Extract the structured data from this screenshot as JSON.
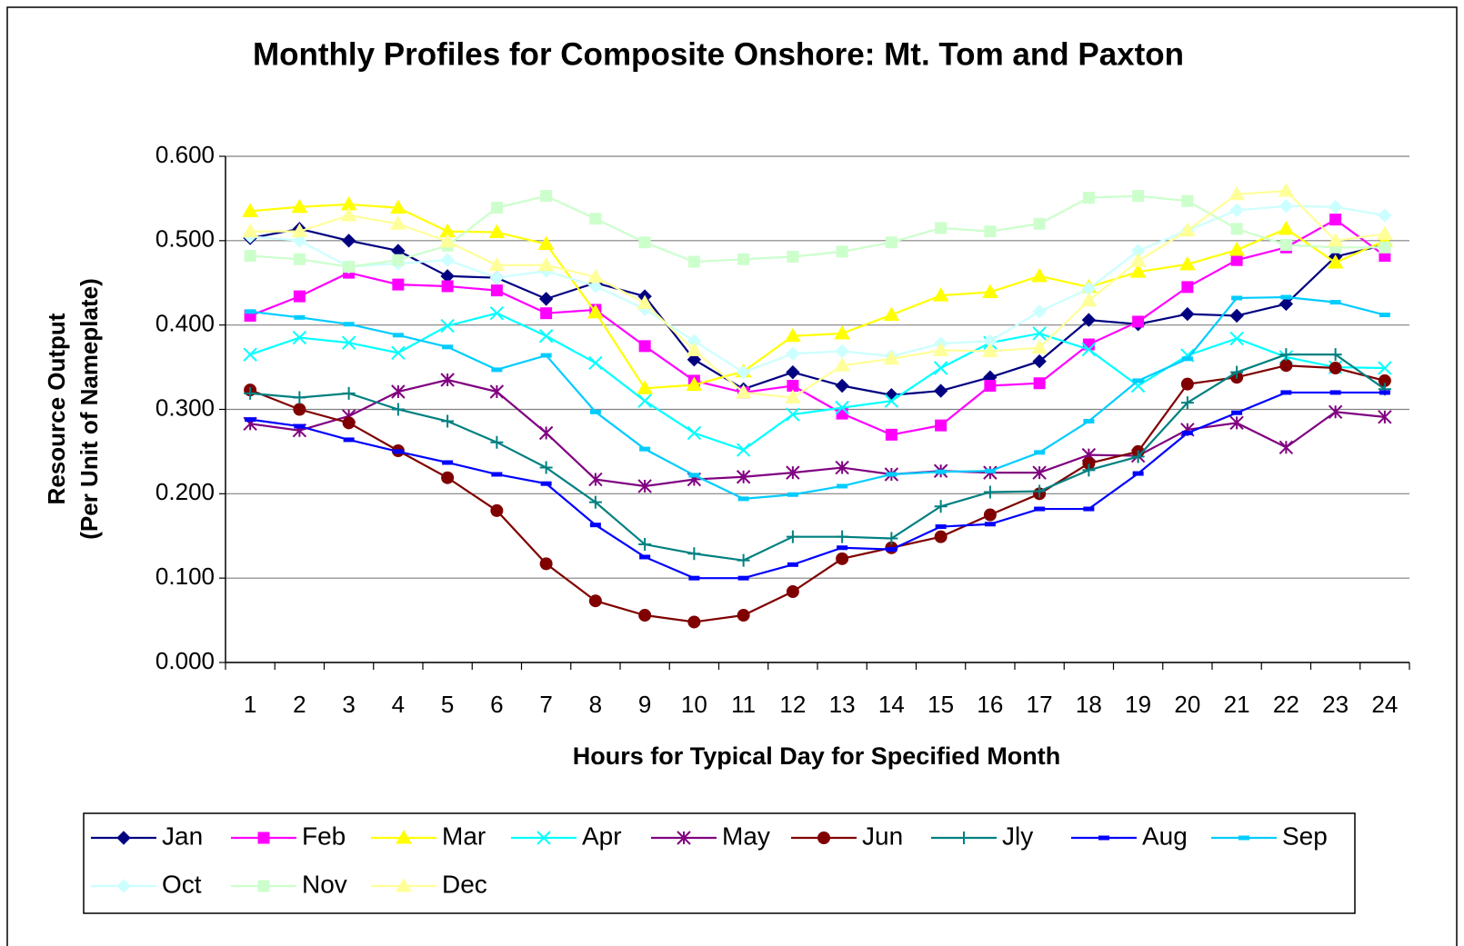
{
  "chart_data": {
    "type": "line",
    "title": "Monthly Profiles for Composite Onshore: Mt. Tom and Paxton",
    "xlabel": "Hours for Typical Day for Specified Month",
    "ylabel": [
      "Resource Output",
      "(Per Unit of Nameplate)"
    ],
    "categories": [
      "1",
      "2",
      "3",
      "4",
      "5",
      "6",
      "7",
      "8",
      "9",
      "10",
      "11",
      "12",
      "13",
      "14",
      "15",
      "16",
      "17",
      "18",
      "19",
      "20",
      "21",
      "22",
      "23",
      "24"
    ],
    "ylim": [
      0,
      0.6
    ],
    "yticks": [
      {
        "value": 0,
        "label": "0.000"
      },
      {
        "value": 0.1,
        "label": "0.100"
      },
      {
        "value": 0.2,
        "label": "0.200"
      },
      {
        "value": 0.3,
        "label": "0.300"
      },
      {
        "value": 0.4,
        "label": "0.400"
      },
      {
        "value": 0.5,
        "label": "0.500"
      },
      {
        "value": 0.6,
        "label": "0.600"
      }
    ],
    "grid": true,
    "legend": "bottom",
    "series": [
      {
        "name": "Jan",
        "color": "#000080",
        "marker": "diamond",
        "values": [
          0.503,
          0.514,
          0.5,
          0.488,
          0.458,
          0.456,
          0.431,
          0.45,
          0.434,
          0.359,
          0.324,
          0.344,
          0.328,
          0.317,
          0.322,
          0.338,
          0.357,
          0.406,
          0.401,
          0.413,
          0.411,
          0.425,
          0.481,
          0.495
        ]
      },
      {
        "name": "Feb",
        "color": "#FF00FF",
        "marker": "square",
        "values": [
          0.411,
          0.434,
          0.462,
          0.448,
          0.446,
          0.441,
          0.414,
          0.418,
          0.375,
          0.334,
          0.32,
          0.328,
          0.295,
          0.27,
          0.281,
          0.328,
          0.331,
          0.377,
          0.404,
          0.445,
          0.477,
          0.492,
          0.525,
          0.482
        ]
      },
      {
        "name": "Mar",
        "color": "#FFFF00",
        "marker": "triangle",
        "values": [
          0.535,
          0.54,
          0.543,
          0.539,
          0.511,
          0.51,
          0.496,
          0.415,
          0.325,
          0.329,
          0.345,
          0.387,
          0.39,
          0.412,
          0.435,
          0.439,
          0.458,
          0.445,
          0.463,
          0.472,
          0.489,
          0.514,
          0.474,
          0.5
        ]
      },
      {
        "name": "Apr",
        "color": "#00FFFF",
        "marker": "x",
        "values": [
          0.365,
          0.385,
          0.379,
          0.367,
          0.399,
          0.414,
          0.387,
          0.355,
          0.31,
          0.272,
          0.252,
          0.294,
          0.302,
          0.31,
          0.349,
          0.379,
          0.39,
          0.371,
          0.328,
          0.364,
          0.384,
          0.362,
          0.35,
          0.349
        ]
      },
      {
        "name": "May",
        "color": "#800080",
        "marker": "star",
        "values": [
          0.283,
          0.275,
          0.292,
          0.321,
          0.335,
          0.321,
          0.272,
          0.217,
          0.209,
          0.217,
          0.22,
          0.225,
          0.231,
          0.223,
          0.227,
          0.225,
          0.225,
          0.246,
          0.245,
          0.276,
          0.284,
          0.255,
          0.297,
          0.291
        ]
      },
      {
        "name": "Jun",
        "color": "#800000",
        "marker": "circle",
        "values": [
          0.323,
          0.3,
          0.284,
          0.251,
          0.219,
          0.18,
          0.117,
          0.073,
          0.056,
          0.048,
          0.056,
          0.084,
          0.123,
          0.136,
          0.149,
          0.175,
          0.2,
          0.236,
          0.25,
          0.33,
          0.338,
          0.352,
          0.349,
          0.334
        ]
      },
      {
        "name": "Jly",
        "color": "#008080",
        "marker": "plus",
        "values": [
          0.319,
          0.314,
          0.319,
          0.3,
          0.286,
          0.261,
          0.231,
          0.19,
          0.14,
          0.129,
          0.121,
          0.149,
          0.149,
          0.147,
          0.185,
          0.202,
          0.203,
          0.228,
          0.244,
          0.308,
          0.344,
          0.365,
          0.365,
          0.324
        ]
      },
      {
        "name": "Aug",
        "color": "#0000FF",
        "marker": "dash",
        "values": [
          0.288,
          0.28,
          0.264,
          0.25,
          0.237,
          0.223,
          0.212,
          0.163,
          0.125,
          0.1,
          0.1,
          0.116,
          0.136,
          0.134,
          0.161,
          0.164,
          0.182,
          0.182,
          0.224,
          0.272,
          0.296,
          0.32,
          0.32,
          0.32
        ]
      },
      {
        "name": "Sep",
        "color": "#00CCFF",
        "marker": "dash",
        "values": [
          0.416,
          0.409,
          0.401,
          0.388,
          0.374,
          0.347,
          0.364,
          0.297,
          0.253,
          0.222,
          0.194,
          0.199,
          0.209,
          0.223,
          0.226,
          0.227,
          0.249,
          0.286,
          0.334,
          0.36,
          0.432,
          0.433,
          0.427,
          0.412
        ]
      },
      {
        "name": "Oct",
        "color": "#CCFFFF",
        "marker": "diamond",
        "values": [
          0.505,
          0.5,
          0.469,
          0.473,
          0.477,
          0.456,
          0.464,
          0.446,
          0.419,
          0.381,
          0.344,
          0.366,
          0.369,
          0.363,
          0.378,
          0.381,
          0.416,
          0.443,
          0.488,
          0.512,
          0.536,
          0.541,
          0.54,
          0.53
        ]
      },
      {
        "name": "Nov",
        "color": "#CCFFCC",
        "marker": "square",
        "values": [
          0.482,
          0.478,
          0.469,
          0.477,
          0.494,
          0.539,
          0.553,
          0.526,
          0.498,
          0.475,
          0.478,
          0.481,
          0.487,
          0.498,
          0.515,
          0.511,
          0.52,
          0.551,
          0.553,
          0.547,
          0.514,
          0.495,
          0.492,
          0.492
        ]
      },
      {
        "name": "Dec",
        "color": "#FFFF99",
        "marker": "triangle",
        "values": [
          0.511,
          0.511,
          0.53,
          0.52,
          0.499,
          0.471,
          0.471,
          0.457,
          0.426,
          0.37,
          0.32,
          0.314,
          0.352,
          0.36,
          0.37,
          0.369,
          0.373,
          0.429,
          0.476,
          0.512,
          0.555,
          0.559,
          0.5,
          0.508
        ]
      }
    ]
  }
}
